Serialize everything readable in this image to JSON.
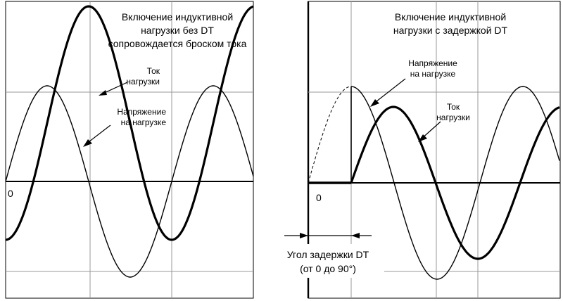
{
  "left": {
    "title_lines": [
      "Включение индуктивной",
      "нагрузки без DT",
      "сопровождается броском тока"
    ],
    "current_label_lines": [
      "Ток",
      "нагрузки"
    ],
    "voltage_label_lines": [
      "Напряжение",
      "на нагрузке"
    ],
    "zero_label": "0"
  },
  "right": {
    "title_lines": [
      "Включение индуктивной",
      "нагрузки с задержкой DT"
    ],
    "voltage_label_lines": [
      "Напряжение",
      "на нагрузке"
    ],
    "current_label_lines": [
      "Ток",
      "нагрузки"
    ],
    "zero_label": "0",
    "delay_label_lines": [
      "Угол задержки DT",
      "(от 0 до 90°)"
    ]
  },
  "colors": {
    "line": "#000000",
    "grid": "#999999",
    "background": "#ffffff"
  }
}
